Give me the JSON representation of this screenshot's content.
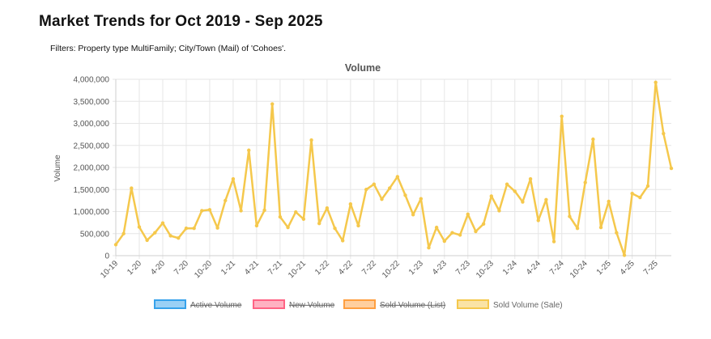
{
  "page": {
    "title": "Market Trends for Oct 2019 - Sep 2025",
    "filters": "Filters: Property type MultiFamily; City/Town (Mail) of 'Cohoes'."
  },
  "colors": {
    "line": "#f5c84c",
    "grid": "#e6e6e6",
    "axis_text": "#555555"
  },
  "chart_data": {
    "type": "line",
    "title": "Volume",
    "ylabel": "Volume",
    "xlabel": "",
    "ylim": [
      0,
      4000000
    ],
    "y_ticks": [
      "0",
      "500,000",
      "1,000,000",
      "1,500,000",
      "2,000,000",
      "2,500,000",
      "3,000,000",
      "3,500,000",
      "4,000,000"
    ],
    "x_tick_labels": [
      "10-19",
      "1-20",
      "4-20",
      "7-20",
      "10-20",
      "1-21",
      "4-21",
      "7-21",
      "10-21",
      "1-22",
      "4-22",
      "7-22",
      "10-22",
      "1-23",
      "4-23",
      "7-23",
      "10-23",
      "1-24",
      "4-24",
      "7-24",
      "10-24",
      "1-25",
      "4-25",
      "7-25"
    ],
    "x_tick_indices": [
      0,
      3,
      6,
      9,
      12,
      15,
      18,
      21,
      24,
      27,
      30,
      33,
      36,
      39,
      42,
      45,
      48,
      51,
      54,
      57,
      60,
      63,
      66,
      69
    ],
    "legend": [
      {
        "name": "Active Volume",
        "color": "#36a2eb",
        "hidden": true
      },
      {
        "name": "New Volume",
        "color": "#ff6384",
        "hidden": true
      },
      {
        "name": "Sold Volume (List)",
        "color": "#ff9f40",
        "hidden": true
      },
      {
        "name": "Sold Volume (Sale)",
        "color": "#f5c84c",
        "hidden": false
      }
    ],
    "series": [
      {
        "name": "Sold Volume (Sale)",
        "values": [
          250000,
          500000,
          1530000,
          650000,
          350000,
          520000,
          740000,
          450000,
          400000,
          620000,
          620000,
          1020000,
          1040000,
          630000,
          1250000,
          1740000,
          1020000,
          2390000,
          680000,
          1030000,
          3440000,
          880000,
          640000,
          990000,
          830000,
          2620000,
          730000,
          1080000,
          620000,
          340000,
          1170000,
          680000,
          1500000,
          1620000,
          1280000,
          1530000,
          1790000,
          1370000,
          930000,
          1290000,
          180000,
          640000,
          330000,
          520000,
          470000,
          940000,
          550000,
          720000,
          1350000,
          1020000,
          1620000,
          1460000,
          1220000,
          1740000,
          800000,
          1270000,
          320000,
          3160000,
          890000,
          620000,
          1660000,
          2640000,
          640000,
          1230000,
          520000,
          10000,
          1410000,
          1320000,
          1580000,
          3930000,
          2770000,
          1980000
        ]
      }
    ]
  }
}
